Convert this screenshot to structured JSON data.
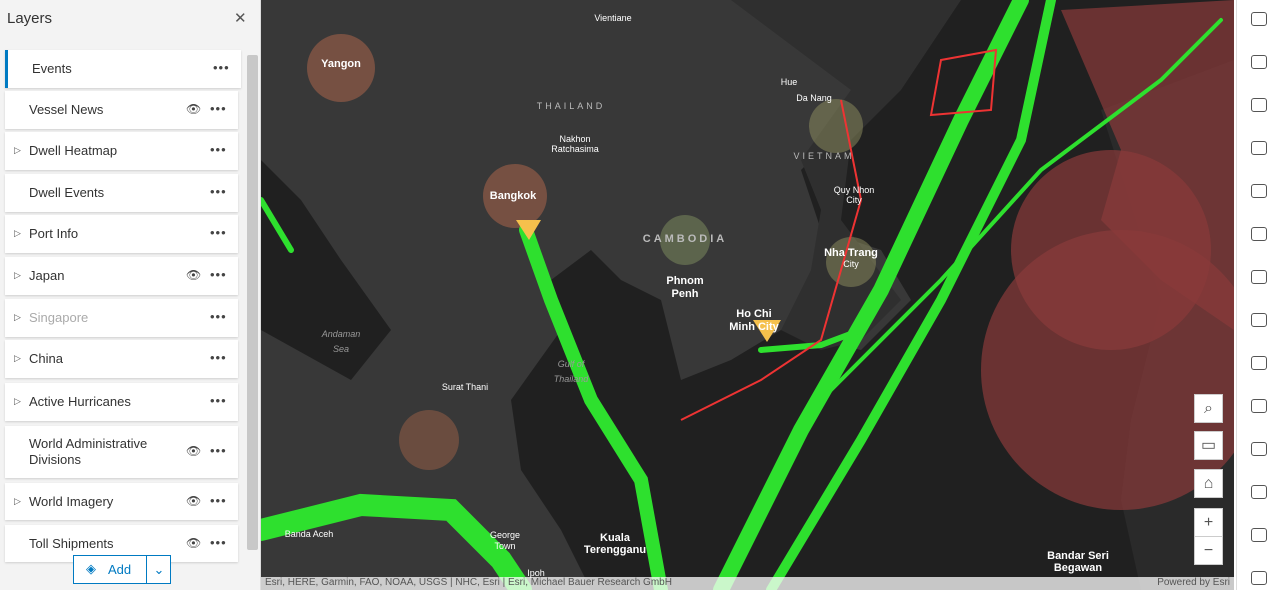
{
  "panel": {
    "title": "Layers",
    "layers": [
      "Events",
      "Vessel News",
      "Dwell Heatmap",
      "Dwell Events",
      "Port Info",
      "Japan",
      "Singapore",
      "China",
      "Active Hurricanes",
      "World Administrative Divisions",
      "World Imagery",
      "Toll Shipments"
    ],
    "add": "Add"
  },
  "map": {
    "labels": [
      "Vientiane",
      "Yangon",
      "THAILAND",
      "Nakhon",
      "Ratchasima",
      "Hue",
      "Da Nang",
      "VIETNAM",
      "Bangkok",
      "Quy Nhon",
      "City",
      "CAMBODIA",
      "Nha Trang",
      "City",
      "Phnom",
      "Penh",
      "Andaman",
      "Sea",
      "Ho Chi",
      "Minh City",
      "Gulf of",
      "Thailand",
      "Surat Thani",
      "Kuala",
      "Terengganu",
      "Banda Aceh",
      "George",
      "Town",
      "Ipoh",
      "Bandar Seri",
      "Begawan"
    ],
    "attribution": "Esri, HERE, Garmin, FAO, NOAA, USGS | NHC, Esri | Esri, Michael Bauer Research GmbH",
    "powered": "Powered by Esri"
  }
}
